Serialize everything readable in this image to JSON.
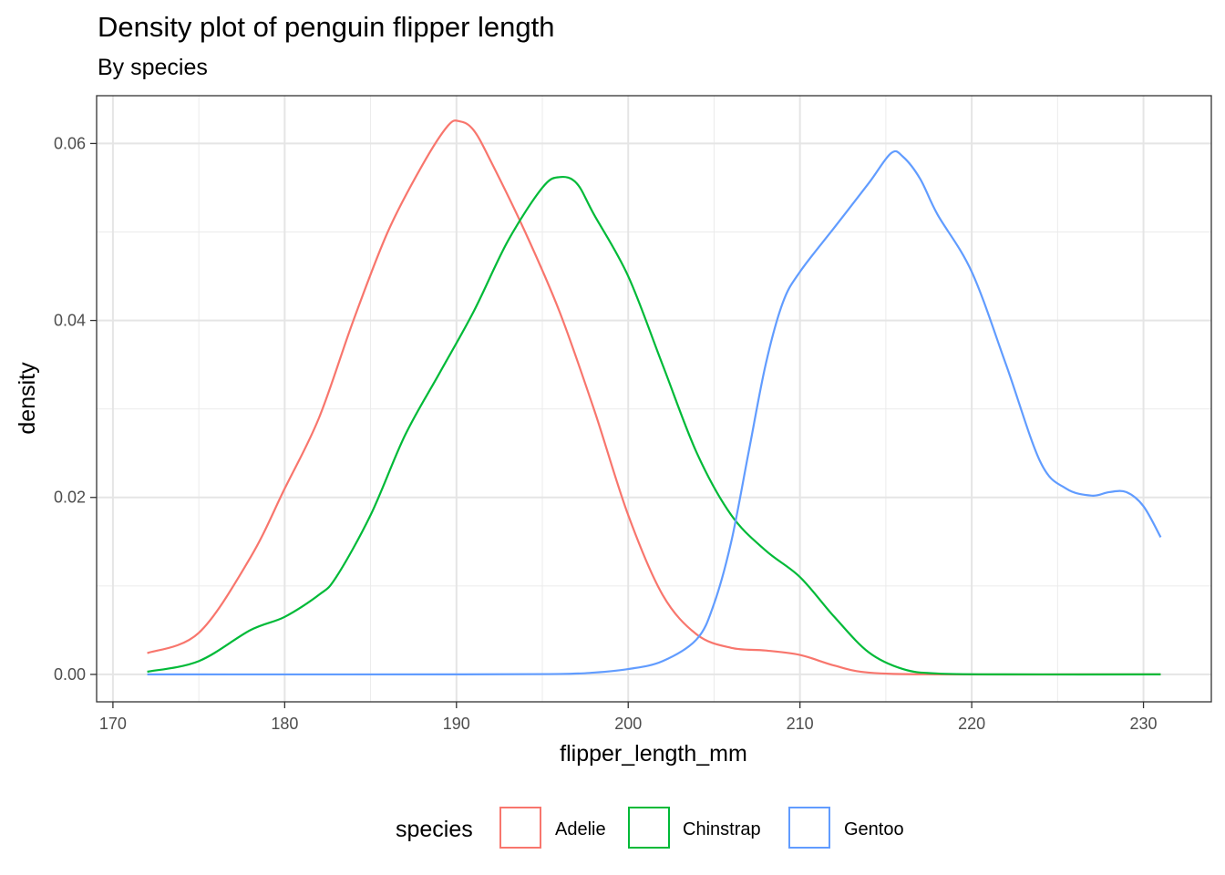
{
  "chart_data": {
    "type": "line",
    "title": "Density plot of penguin flipper length",
    "subtitle": "By species",
    "xlabel": "flipper_length_mm",
    "ylabel": "density",
    "xlim": [
      169.05,
      233.95
    ],
    "ylim": [
      -0.0031,
      0.0654
    ],
    "x_ticks": [
      170,
      180,
      190,
      200,
      210,
      220,
      230
    ],
    "x_tick_labels": [
      "170",
      "180",
      "190",
      "200",
      "210",
      "220",
      "230"
    ],
    "y_ticks": [
      0,
      0.02,
      0.04,
      0.06
    ],
    "y_tick_labels": [
      "0.00",
      "0.02",
      "0.04",
      "0.06"
    ],
    "grid": true,
    "legend": {
      "title": "species",
      "position": "bottom"
    },
    "series": [
      {
        "name": "Adelie",
        "color": "#F8766D",
        "points": [
          [
            172,
            0.0024
          ],
          [
            175,
            0.0047
          ],
          [
            178,
            0.0132
          ],
          [
            180,
            0.021
          ],
          [
            182,
            0.029
          ],
          [
            184,
            0.04
          ],
          [
            186,
            0.05
          ],
          [
            188,
            0.0575
          ],
          [
            189.5,
            0.062
          ],
          [
            190.2,
            0.0625
          ],
          [
            191,
            0.0615
          ],
          [
            192,
            0.058
          ],
          [
            194,
            0.05
          ],
          [
            196,
            0.041
          ],
          [
            198,
            0.03
          ],
          [
            200,
            0.018
          ],
          [
            202,
            0.009
          ],
          [
            204,
            0.0045
          ],
          [
            206,
            0.003
          ],
          [
            208,
            0.0027
          ],
          [
            210,
            0.0022
          ],
          [
            212,
            0.001
          ],
          [
            214,
            0.0002
          ],
          [
            218,
            0.0
          ],
          [
            226,
            0.0
          ],
          [
            231,
            0.0
          ]
        ]
      },
      {
        "name": "Chinstrap",
        "color": "#00BA38",
        "points": [
          [
            172,
            0.0003
          ],
          [
            175,
            0.0015
          ],
          [
            178,
            0.005
          ],
          [
            180,
            0.0065
          ],
          [
            182,
            0.009
          ],
          [
            183,
            0.011
          ],
          [
            185,
            0.018
          ],
          [
            187,
            0.027
          ],
          [
            189,
            0.034
          ],
          [
            191,
            0.041
          ],
          [
            193,
            0.049
          ],
          [
            195,
            0.055
          ],
          [
            196,
            0.0562
          ],
          [
            197,
            0.0555
          ],
          [
            198,
            0.052
          ],
          [
            200,
            0.045
          ],
          [
            202,
            0.035
          ],
          [
            204,
            0.025
          ],
          [
            206,
            0.018
          ],
          [
            208,
            0.014
          ],
          [
            210,
            0.011
          ],
          [
            212,
            0.0065
          ],
          [
            214,
            0.0025
          ],
          [
            216,
            0.0006
          ],
          [
            218,
            0.0001
          ],
          [
            222,
            0.0
          ],
          [
            231,
            0.0
          ]
        ]
      },
      {
        "name": "Gentoo",
        "color": "#619CFF",
        "points": [
          [
            172,
            0.0
          ],
          [
            190,
            0.0
          ],
          [
            196,
            5e-05
          ],
          [
            198,
            0.0002
          ],
          [
            200,
            0.0006
          ],
          [
            202,
            0.0015
          ],
          [
            204,
            0.004
          ],
          [
            205,
            0.008
          ],
          [
            206,
            0.015
          ],
          [
            207,
            0.025
          ],
          [
            208,
            0.035
          ],
          [
            209,
            0.042
          ],
          [
            210,
            0.0455
          ],
          [
            212,
            0.0505
          ],
          [
            214,
            0.0555
          ],
          [
            215.3,
            0.0589
          ],
          [
            216,
            0.0585
          ],
          [
            217,
            0.056
          ],
          [
            218,
            0.052
          ],
          [
            220,
            0.0455
          ],
          [
            222,
            0.035
          ],
          [
            224,
            0.024
          ],
          [
            225.5,
            0.021
          ],
          [
            227,
            0.0202
          ],
          [
            228,
            0.0206
          ],
          [
            229,
            0.0206
          ],
          [
            230,
            0.019
          ],
          [
            231,
            0.0155
          ]
        ]
      }
    ]
  }
}
